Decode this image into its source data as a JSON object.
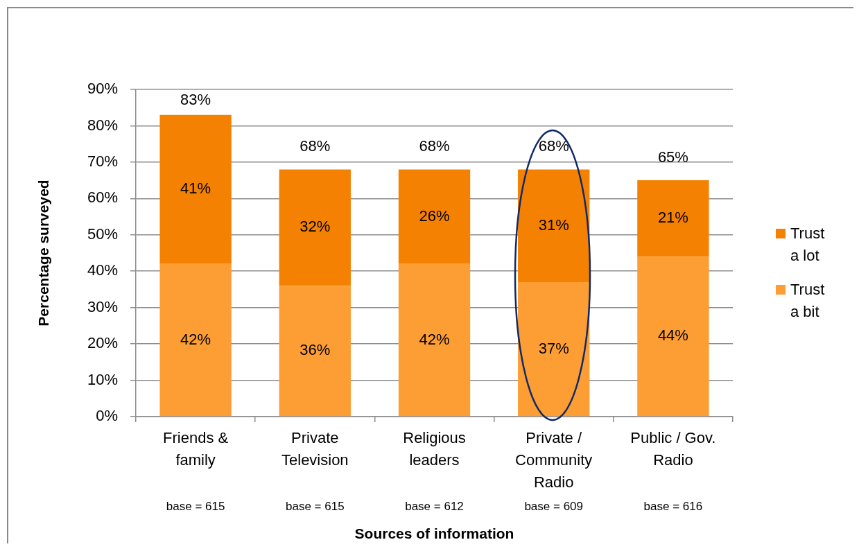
{
  "chart_data": {
    "type": "bar",
    "xlabel": "Sources of information",
    "ylabel": "Percentage surveyed",
    "categories": [
      "Friends & family",
      "Private Television",
      "Religious leaders",
      "Private / Community Radio",
      "Public / Gov. Radio"
    ],
    "series": [
      {
        "name": "Trust a bit",
        "color": "#fd9e35",
        "values": [
          42,
          36,
          42,
          37,
          44
        ],
        "value_labels": [
          "42%",
          "36%",
          "42%",
          "37%",
          "44%"
        ]
      },
      {
        "name": "Trust a lot",
        "color": "#f58102",
        "values": [
          41,
          32,
          26,
          31,
          21
        ],
        "value_labels": [
          "41%",
          "32%",
          "26%",
          "31%",
          "21%"
        ]
      }
    ],
    "totals": [
      "83%",
      "68%",
      "68%",
      "68%",
      "65%"
    ],
    "stacked": true,
    "ylim": [
      0,
      90
    ],
    "yticks": [
      {
        "value": 0,
        "label": "0%"
      },
      {
        "value": 10,
        "label": "10%"
      },
      {
        "value": 20,
        "label": "20%"
      },
      {
        "value": 30,
        "label": "30%"
      },
      {
        "value": 40,
        "label": "40%"
      },
      {
        "value": 50,
        "label": "50%"
      },
      {
        "value": 60,
        "label": "60%"
      },
      {
        "value": 70,
        "label": "70%"
      },
      {
        "value": 80,
        "label": "80%"
      },
      {
        "value": 90,
        "label": "90%"
      }
    ],
    "grid": "y",
    "legend": "right",
    "annotations": [
      "base = 615",
      "base = 615",
      "base = 612",
      "base = 609",
      "base = 616"
    ]
  }
}
